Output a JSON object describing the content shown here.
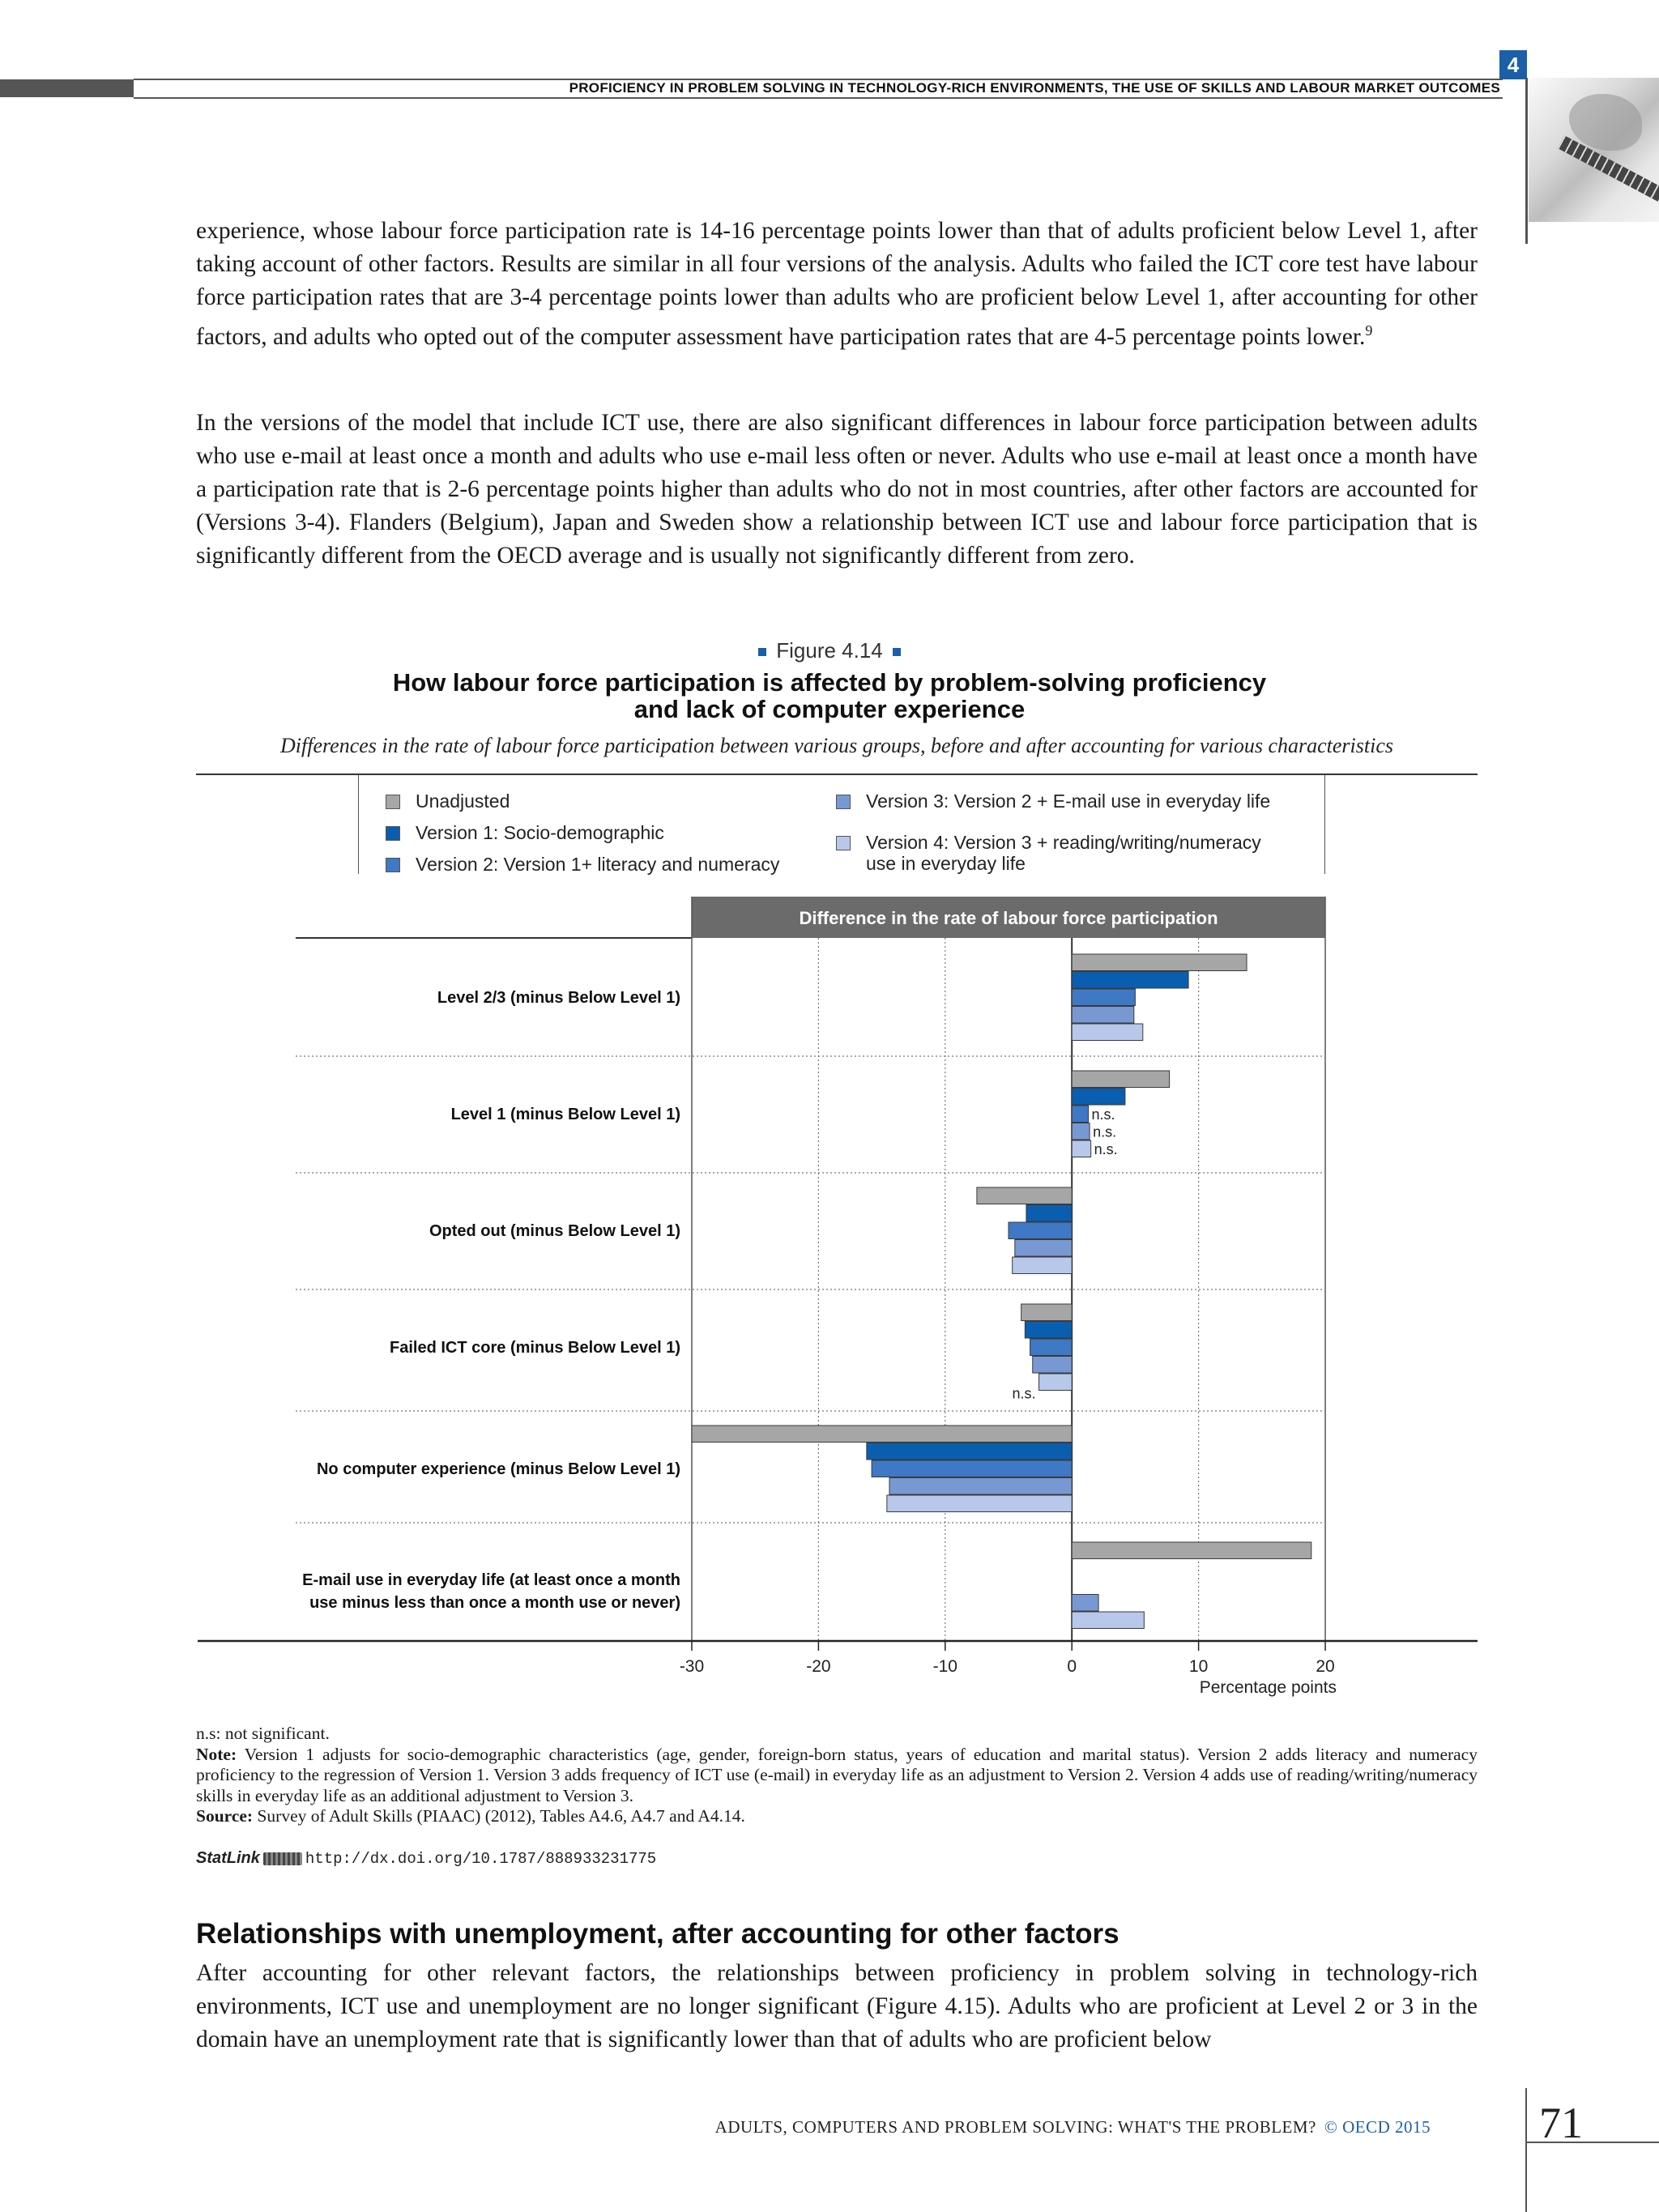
{
  "header": {
    "chapter_number": "4",
    "running_title": "PROFICIENCY IN PROBLEM SOLVING IN TECHNOLOGY-RICH ENVIRONMENTS, THE USE OF SKILLS AND LABOUR MARKET OUTCOMES"
  },
  "body": {
    "paragraph_1": "experience, whose labour force participation rate is 14-16 percentage points lower than that of adults proficient below Level 1, after taking account of other factors. Results are similar in all four versions of the analysis. Adults who failed the ICT core test have labour force participation rates that are 3-4 percentage points lower than adults who are proficient below Level 1, after accounting for other factors, and adults who opted out of the computer assessment have participation rates that are 4-5 percentage points lower.",
    "paragraph_1_footnote": "9",
    "paragraph_2": "In the versions of the model that include ICT use, there are also significant differences in labour force participation between adults who use e-mail at least once a month and adults who use e-mail less often or never. Adults who use e-mail at least once a month have a participation rate that is 2-6 percentage points higher than adults who do not in most countries, after other factors are accounted for (Versions 3-4). Flanders (Belgium), Japan and Sweden show a relationship between ICT use and labour force participation that is significantly different from the OECD average and is usually not significantly different from zero.",
    "section_title": "Relationships with unemployment, after accounting for other factors",
    "paragraph_3": "After accounting for other relevant factors, the relationships between proficiency in problem solving in technology-rich environments, ICT use and unemployment are no longer significant (Figure 4.15). Adults who are proficient at Level 2 or 3 in the domain have an unemployment rate that is significantly lower than that of adults who are proficient below"
  },
  "figure": {
    "label": "Figure 4.14",
    "title_line1": "How labour force participation is affected by problem-solving proficiency",
    "title_line2": "and lack of computer experience",
    "subtitle": "Differences in the rate of labour force participation between various groups, before and after accounting for various characteristics",
    "notes": {
      "ns_line": "n.s: not significant.",
      "note_label": "Note:",
      "note_text": "Version 1 adjusts for socio-demographic characteristics (age, gender, foreign-born status, years of education and marital status). Version 2 adds literacy and numeracy proficiency to the regression of Version 1. Version 3 adds frequency of ICT use (e-mail) in everyday life as an adjustment to Version 2. Version 4 adds use of reading/writing/numeracy skills in everyday life as an additional adjustment to Version 3.",
      "source_label": "Source:",
      "source_text": "Survey of Adult Skills (PIAAC) (2012), Tables A4.6, A4.7 and A4.14.",
      "statlink_brand": "StatLink",
      "statlink_url": "http://dx.doi.org/10.1787/888933231775"
    }
  },
  "chart_data": {
    "type": "bar",
    "orientation": "horizontal",
    "header_band": "Difference in the rate of labour force participation",
    "xlabel": "Percentage points",
    "xlim": [
      -30,
      20
    ],
    "xticks": [
      -30,
      -20,
      -10,
      0,
      10,
      20
    ],
    "grid": "dotted vertical at x ticks, dotted horizontal between groups",
    "legend_placement": "top",
    "categories": [
      "Level 2/3  (minus Below Level 1)",
      "Level 1  (minus Below Level 1)",
      "Opted out  (minus Below Level 1)",
      "Failed ICT core  (minus Below Level 1)",
      "No computer experience (minus Below Level 1)",
      "E-mail use in everyday life (at least once a month use minus less than once a month use or never)"
    ],
    "series": [
      {
        "name": "Unadjusted",
        "color": "#a6a6a6",
        "values": [
          13.8,
          7.7,
          -7.5,
          -4.0,
          -30.0,
          18.9
        ],
        "ns": [
          false,
          false,
          false,
          false,
          false,
          false
        ]
      },
      {
        "name": "Version 1: Socio-demographic",
        "color": "#0a5eb0",
        "values": [
          9.2,
          4.2,
          -3.6,
          -3.7,
          -16.2,
          null
        ],
        "ns": [
          false,
          false,
          false,
          false,
          false,
          false
        ]
      },
      {
        "name": "Version 2: Version 1+ literacy and numeracy",
        "color": "#3f78c4",
        "values": [
          5.0,
          1.3,
          -5.0,
          -3.3,
          -15.8,
          null
        ],
        "ns": [
          false,
          true,
          false,
          false,
          false,
          false
        ]
      },
      {
        "name": "Version 3: Version 2 + E-mail use  in everyday life",
        "color": "#7898d4",
        "values": [
          4.9,
          1.4,
          -4.5,
          -3.1,
          -14.4,
          2.1
        ],
        "ns": [
          false,
          true,
          false,
          false,
          false,
          false
        ]
      },
      {
        "name": "Version 4: Version 3 + reading/writing/numeracy use in everyday life",
        "color": "#b7c8ea",
        "values": [
          5.6,
          1.5,
          -4.7,
          -2.6,
          -14.6,
          5.7
        ],
        "ns": [
          false,
          true,
          false,
          true,
          false,
          false
        ]
      }
    ],
    "ns_label": "n.s."
  },
  "footer": {
    "book_title": "ADULTS, COMPUTERS AND PROBLEM SOLVING: WHAT'S THE PROBLEM?",
    "copyright": "© OECD 2015",
    "page_number": "71"
  },
  "colors": {
    "accent": "#1a5fa8",
    "header_band": "#6b6b6b"
  }
}
